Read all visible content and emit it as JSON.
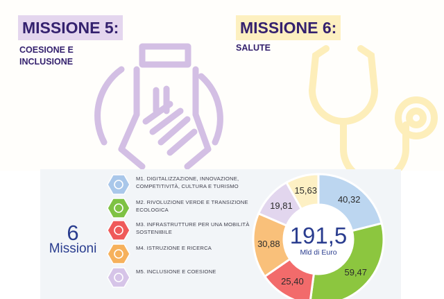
{
  "mission5": {
    "title": "MISSIONE 5:",
    "subtitle": "COESIONE E INCLUSIONE"
  },
  "mission6": {
    "title": "MISSIONE 6:",
    "subtitle": "SALUTE"
  },
  "infographic": {
    "count": "6",
    "count_label": "Missioni",
    "missions": [
      {
        "code": "M1.",
        "label": "DIGITALIZZAZIONE, INNOVAZIONE, COMPETITIVITÀ, CULTURA E TURISMO",
        "color": "#a9c7ea",
        "icon": "network-brain-icon"
      },
      {
        "code": "M2.",
        "label": "RIVOLUZIONE VERDE E TRANSIZIONE ECOLOGICA",
        "color": "#7ec244",
        "icon": "globe-leaf-icon"
      },
      {
        "code": "M3.",
        "label": "INFRASTRUTTURE PER UNA MOBILITÀ SOSTENIBILE",
        "color": "#ef5a5a",
        "icon": "train-icon"
      },
      {
        "code": "M4.",
        "label": "ISTRUZIONE E RICERCA",
        "color": "#f6b15c",
        "icon": "books-icon"
      },
      {
        "code": "M5.",
        "label": "INCLUSIONE E COESIONE",
        "color": "#d6c4e8",
        "icon": "people-icon"
      }
    ],
    "total_value": "191,5",
    "total_unit": "Mld di Euro"
  },
  "chart_data": {
    "type": "pie",
    "title": "",
    "total": "191,5",
    "unit": "Mld di Euro",
    "slices": [
      {
        "value": 40.32,
        "label": "40,32",
        "color": "#bcd6f0"
      },
      {
        "value": 59.47,
        "label": "59,47",
        "color": "#8cc63f"
      },
      {
        "value": 25.4,
        "label": "25,40",
        "color": "#f26b6b"
      },
      {
        "value": 30.88,
        "label": "30,88",
        "color": "#f9c07a"
      },
      {
        "value": 19.81,
        "label": "19,81",
        "color": "#e2d6ee"
      },
      {
        "value": 15.63,
        "label": "15,63",
        "color": "#fdf0c4"
      }
    ]
  }
}
